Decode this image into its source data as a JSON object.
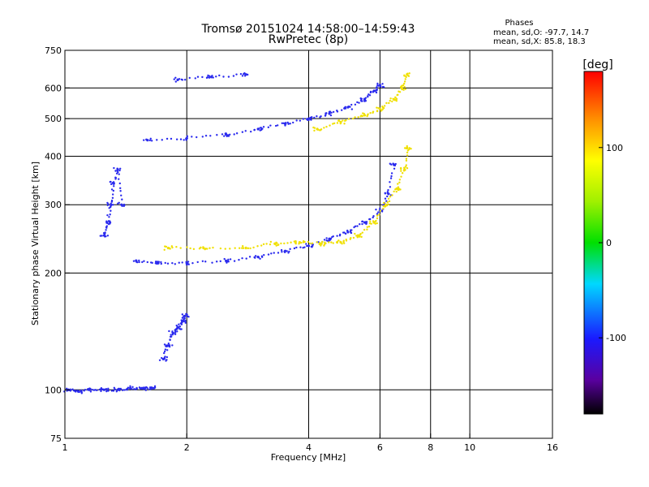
{
  "chart_data": {
    "type": "scatter",
    "title": "Tromsø 20151024 14:58:00–14:59:43",
    "subtitle": "RwPretec (8p)",
    "xlabel": "Frequency [MHz]",
    "ylabel": "Stationary phase Virtual Height [km]",
    "x_scale": "log",
    "y_scale": "log",
    "xlim": [
      1,
      16
    ],
    "ylim": [
      75,
      750
    ],
    "xticks": [
      1,
      2,
      4,
      6,
      8,
      10,
      16
    ],
    "yticks": [
      75,
      100,
      200,
      300,
      400,
      500,
      600,
      750
    ],
    "x_gridlines": [
      2,
      4,
      6,
      8,
      10
    ],
    "y_gridlines": [
      100,
      200,
      300,
      400,
      500,
      600
    ],
    "stats": {
      "heading": "Phases",
      "line_o": "mean, sd,O: -97.7, 14.7",
      "line_x": "mean, sd,X:  85.8, 18.3"
    },
    "colorbar": {
      "label": "[deg]",
      "ticks": [
        100,
        0,
        -100
      ],
      "range": [
        -180,
        180
      ]
    },
    "traces": [
      {
        "freq": [
          1.02,
          1.08,
          1.15,
          1.25,
          1.35,
          1.45,
          1.55,
          1.65
        ],
        "height": [
          100,
          99,
          100,
          100,
          100,
          101,
          101,
          101
        ],
        "phase": -110
      },
      {
        "freq": [
          1.75,
          1.8,
          1.85,
          1.9,
          1.95,
          1.98
        ],
        "height": [
          120,
          130,
          140,
          145,
          150,
          155
        ],
        "phase": -110
      },
      {
        "freq": [
          1.25,
          1.27,
          1.3,
          1.32,
          1.35,
          1.38
        ],
        "height": [
          250,
          270,
          300,
          340,
          370,
          300
        ],
        "phase": -110
      },
      {
        "freq": [
          1.5,
          1.7,
          2.0,
          2.5,
          3.0,
          3.5,
          4.0,
          4.5,
          5.0,
          5.5,
          6.0,
          6.3,
          6.5
        ],
        "height": [
          215,
          212,
          212,
          215,
          220,
          228,
          235,
          245,
          255,
          270,
          290,
          320,
          380
        ],
        "phase": -110
      },
      {
        "freq": [
          1.8,
          2.2,
          2.8,
          3.3,
          3.8,
          4.3,
          4.8,
          5.3,
          5.8,
          6.2,
          6.6,
          6.9,
          7.0
        ],
        "height": [
          232,
          232,
          232,
          238,
          240,
          238,
          240,
          250,
          270,
          300,
          330,
          370,
          420
        ],
        "phase": 95
      },
      {
        "freq": [
          1.6,
          2.0,
          2.5,
          3.0,
          3.5,
          4.0,
          4.5,
          5.0,
          5.5,
          5.8,
          6.0
        ],
        "height": [
          440,
          445,
          455,
          470,
          485,
          500,
          515,
          535,
          560,
          590,
          610
        ],
        "phase": -110
      },
      {
        "freq": [
          1.9,
          2.3,
          2.8
        ],
        "height": [
          630,
          640,
          650
        ],
        "phase": -110
      },
      {
        "freq": [
          4.2,
          4.8,
          5.5,
          6.0,
          6.5,
          6.8,
          7.0
        ],
        "height": [
          470,
          490,
          510,
          530,
          560,
          600,
          650
        ],
        "phase": 95
      }
    ]
  }
}
